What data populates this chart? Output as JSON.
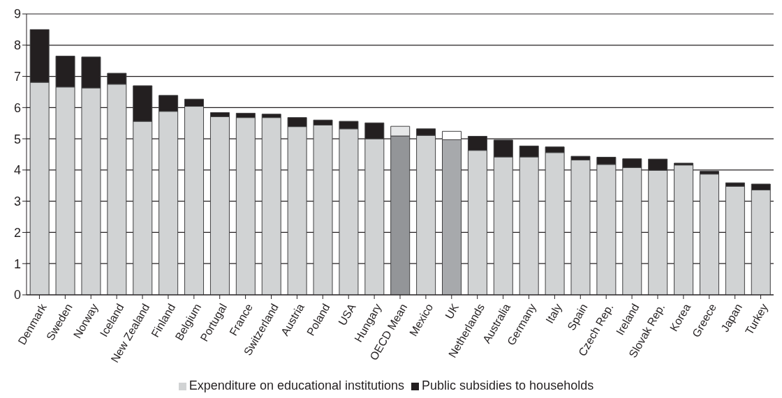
{
  "chart_data": {
    "type": "bar",
    "stacked": true,
    "categories": [
      "Denmark",
      "Sweden",
      "Norway",
      "Iceland",
      "New Zealand",
      "Finland",
      "Belgium",
      "Portugal",
      "France",
      "Switzerland",
      "Austria",
      "Poland",
      "USA",
      "Hungary",
      "OECD Mean",
      "Mexico",
      "UK",
      "Netherlands",
      "Australia",
      "Germany",
      "Italy",
      "Spain",
      "Czech Rep.",
      "Ireland",
      "Slovak Rep.",
      "Korea",
      "Greece",
      "Japan",
      "Turkey"
    ],
    "series": [
      {
        "name": "Expenditure on educational institutions",
        "color": "#d1d3d4",
        "colors": [
          "#d1d3d4",
          "#d1d3d4",
          "#d1d3d4",
          "#d1d3d4",
          "#d1d3d4",
          "#d1d3d4",
          "#d1d3d4",
          "#d1d3d4",
          "#d1d3d4",
          "#d1d3d4",
          "#d1d3d4",
          "#d1d3d4",
          "#d1d3d4",
          "#d1d3d4",
          "#939598",
          "#d1d3d4",
          "#a7a9ac",
          "#d1d3d4",
          "#d1d3d4",
          "#d1d3d4",
          "#d1d3d4",
          "#d1d3d4",
          "#d1d3d4",
          "#d1d3d4",
          "#d1d3d4",
          "#d1d3d4",
          "#d1d3d4",
          "#d1d3d4",
          "#d1d3d4"
        ],
        "values": [
          6.81,
          6.66,
          6.63,
          6.75,
          5.56,
          5.88,
          6.04,
          5.71,
          5.68,
          5.68,
          5.39,
          5.44,
          5.32,
          5.0,
          5.09,
          5.11,
          4.97,
          4.63,
          4.42,
          4.42,
          4.56,
          4.32,
          4.18,
          4.08,
          3.99,
          4.16,
          3.87,
          3.48,
          3.36
        ]
      },
      {
        "name": "Public subsidies to households",
        "color": "#231f20",
        "colors": [
          "#231f20",
          "#231f20",
          "#231f20",
          "#231f20",
          "#231f20",
          "#231f20",
          "#231f20",
          "#231f20",
          "#231f20",
          "#231f20",
          "#231f20",
          "#231f20",
          "#231f20",
          "#231f20",
          "#e6e7e8",
          "#231f20",
          "#ffffff",
          "#231f20",
          "#231f20",
          "#231f20",
          "#231f20",
          "#231f20",
          "#231f20",
          "#231f20",
          "#231f20",
          "#231f20",
          "#231f20",
          "#231f20",
          "#231f20"
        ],
        "values": [
          1.69,
          0.99,
          0.99,
          0.35,
          1.14,
          0.51,
          0.23,
          0.13,
          0.14,
          0.11,
          0.29,
          0.16,
          0.24,
          0.51,
          0.31,
          0.21,
          0.27,
          0.45,
          0.54,
          0.35,
          0.18,
          0.12,
          0.23,
          0.28,
          0.36,
          0.06,
          0.09,
          0.11,
          0.19
        ]
      }
    ],
    "ylim": [
      0,
      9
    ],
    "yticks": [
      0,
      1,
      2,
      3,
      4,
      5,
      6,
      7,
      8,
      9
    ],
    "grid": "y",
    "legend": "bottom"
  }
}
